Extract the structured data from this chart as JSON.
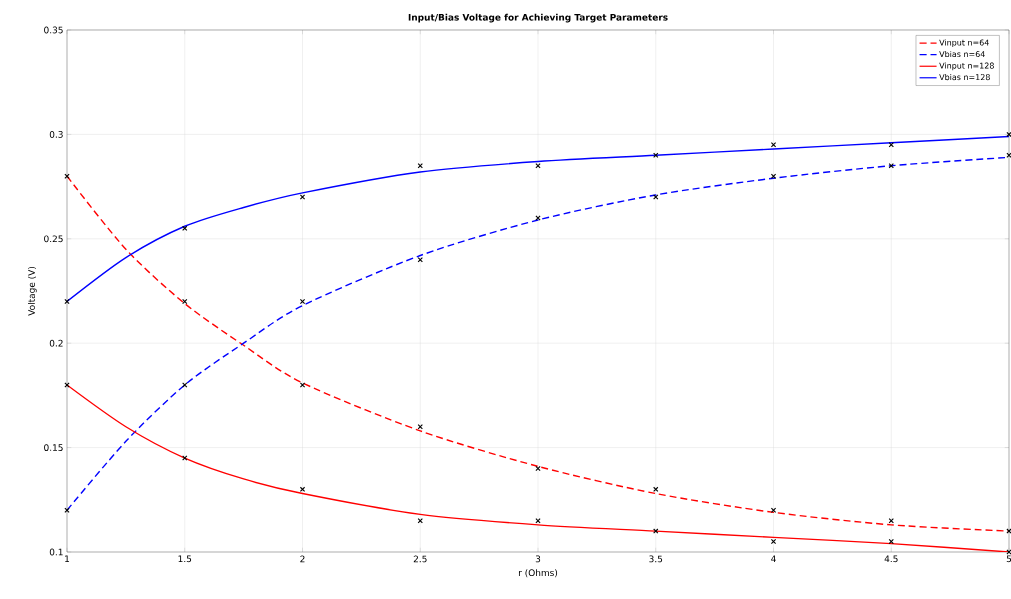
{
  "chart_data": {
    "type": "line",
    "title": "Input/Bias Voltage for Achieving Target Parameters",
    "xlabel": "r (Ohms)",
    "ylabel": "Voltage (V)",
    "xlim": [
      1,
      5
    ],
    "ylim": [
      0.1,
      0.35
    ],
    "xticks": [
      1,
      1.5,
      2,
      2.5,
      3,
      3.5,
      4,
      4.5,
      5
    ],
    "yticks": [
      0.1,
      0.15,
      0.2,
      0.25,
      0.3,
      0.35
    ],
    "grid": true,
    "legend": "top right",
    "series": [
      {
        "name": "Vinput n=64",
        "color": "#ff0000",
        "line_style": "dashed",
        "marker": "none",
        "x": [
          1,
          1.25,
          1.5,
          1.75,
          2,
          2.5,
          3,
          3.5,
          4,
          4.5,
          5
        ],
        "values": [
          0.28,
          0.245,
          0.219,
          0.199,
          0.181,
          0.158,
          0.141,
          0.128,
          0.119,
          0.113,
          0.11
        ]
      },
      {
        "name": "Vbias n=64",
        "color": "#0000ff",
        "line_style": "dashed",
        "marker": "none",
        "x": [
          1,
          1.25,
          1.5,
          1.75,
          2,
          2.5,
          3,
          3.5,
          4,
          4.5,
          5
        ],
        "values": [
          0.12,
          0.153,
          0.18,
          0.2,
          0.218,
          0.242,
          0.259,
          0.271,
          0.279,
          0.285,
          0.289
        ]
      },
      {
        "name": "Vinput n=128",
        "color": "#ff0000",
        "line_style": "solid",
        "marker": "none",
        "x": [
          1,
          1.25,
          1.5,
          1.75,
          2,
          2.5,
          3,
          3.5,
          4,
          4.5,
          5
        ],
        "values": [
          0.18,
          0.16,
          0.145,
          0.135,
          0.128,
          0.118,
          0.113,
          0.11,
          0.107,
          0.104,
          0.1
        ]
      },
      {
        "name": "Vbias n=128",
        "color": "#0000ff",
        "line_style": "solid",
        "marker": "none",
        "x": [
          1,
          1.25,
          1.5,
          1.75,
          2,
          2.5,
          3,
          3.5,
          4,
          4.5,
          5
        ],
        "values": [
          0.22,
          0.241,
          0.256,
          0.265,
          0.272,
          0.282,
          0.287,
          0.29,
          0.293,
          0.296,
          0.299
        ]
      },
      {
        "color": "#000000",
        "type": "scatter",
        "marker": "cross",
        "x": [
          1,
          1.5,
          2,
          2.5,
          3,
          3.5,
          4,
          4.5,
          5
        ],
        "values": [
          0.28,
          0.22,
          0.18,
          0.16,
          0.14,
          0.13,
          0.12,
          0.115,
          0.11
        ]
      },
      {
        "color": "#000000",
        "type": "scatter",
        "marker": "cross",
        "x": [
          1,
          1.5,
          2,
          2.5,
          3,
          3.5,
          4,
          4.5,
          5
        ],
        "values": [
          0.12,
          0.18,
          0.22,
          0.24,
          0.26,
          0.27,
          0.28,
          0.285,
          0.29
        ]
      },
      {
        "color": "#000000",
        "type": "scatter",
        "marker": "cross",
        "x": [
          1,
          1.5,
          2,
          2.5,
          3,
          3.5,
          4,
          4.5,
          5
        ],
        "values": [
          0.18,
          0.145,
          0.13,
          0.115,
          0.115,
          0.11,
          0.105,
          0.105,
          0.1
        ]
      },
      {
        "color": "#000000",
        "type": "scatter",
        "marker": "cross",
        "x": [
          1,
          1.5,
          2,
          2.5,
          3,
          3.5,
          4,
          4.5,
          5
        ],
        "values": [
          0.22,
          0.255,
          0.27,
          0.285,
          0.285,
          0.29,
          0.295,
          0.295,
          0.3
        ]
      }
    ]
  }
}
